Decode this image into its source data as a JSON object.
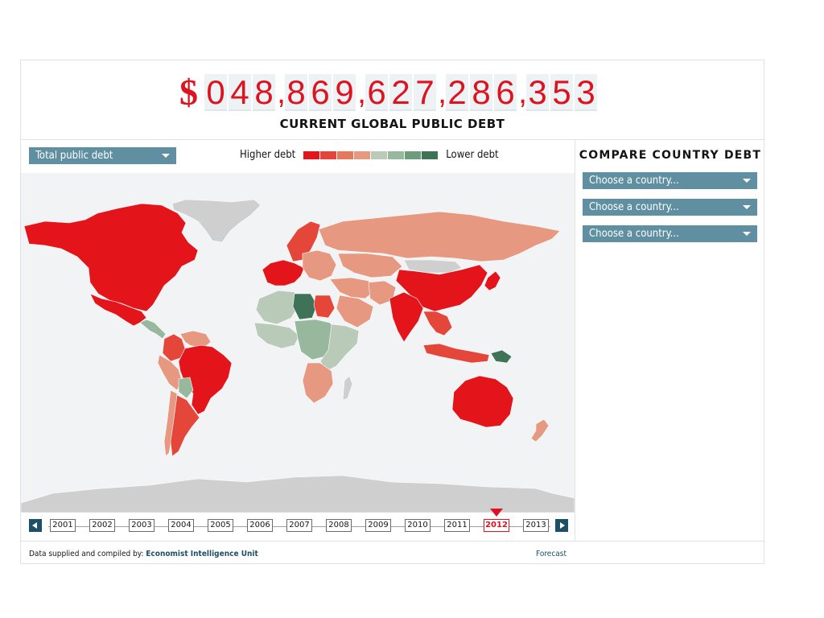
{
  "clock": {
    "currency_symbol": "$",
    "digit_groups": [
      "048",
      "869",
      "627",
      "286",
      "353"
    ],
    "label": "CURRENT GLOBAL PUBLIC DEBT"
  },
  "metric_select": {
    "value": "Total public debt"
  },
  "legend": {
    "higher_label": "Higher debt",
    "lower_label": "Lower debt",
    "colors": [
      "#e4141b",
      "#e5463a",
      "#e6785f",
      "#e69881",
      "#b9cbb8",
      "#98b89d",
      "#6f9b7d",
      "#3e7357"
    ]
  },
  "compare": {
    "title": "COMPARE COUNTRY DEBT",
    "placeholders": [
      "Choose a country...",
      "Choose a country...",
      "Choose a country..."
    ]
  },
  "timeline": {
    "years": [
      "2001",
      "2002",
      "2003",
      "2004",
      "2005",
      "2006",
      "2007",
      "2008",
      "2009",
      "2010",
      "2011",
      "2012",
      "2013"
    ],
    "selected": "2012"
  },
  "footer": {
    "prefix": "Data supplied and compiled by:",
    "source": "Economist Intelligence Unit",
    "forecast": "Forecast"
  },
  "map": {
    "ocean_color": "#f1f3f4",
    "no_data_color": "#cfcfcf",
    "regions": [
      {
        "name": "Canada & USA",
        "level": "highest"
      },
      {
        "name": "Mexico",
        "level": "highest"
      },
      {
        "name": "Greenland",
        "level": "no-data"
      },
      {
        "name": "Central America",
        "level": "lower"
      },
      {
        "name": "Colombia",
        "level": "high"
      },
      {
        "name": "Venezuela",
        "level": "mid-high"
      },
      {
        "name": "Peru",
        "level": "mid-high"
      },
      {
        "name": "Brazil",
        "level": "highest"
      },
      {
        "name": "Bolivia",
        "level": "lower"
      },
      {
        "name": "Chile",
        "level": "mid-high"
      },
      {
        "name": "Argentina",
        "level": "high"
      },
      {
        "name": "Western Europe",
        "level": "highest"
      },
      {
        "name": "Scandinavia",
        "level": "high"
      },
      {
        "name": "Eastern Europe",
        "level": "mid-high"
      },
      {
        "name": "Russia",
        "level": "mid-high"
      },
      {
        "name": "Kazakhstan",
        "level": "mid-high"
      },
      {
        "name": "Mongolia",
        "level": "no-data"
      },
      {
        "name": "China",
        "level": "highest"
      },
      {
        "name": "India",
        "level": "highest"
      },
      {
        "name": "Japan",
        "level": "highest"
      },
      {
        "name": "Middle East",
        "level": "mid-high"
      },
      {
        "name": "Saudi Arabia",
        "level": "mid-high"
      },
      {
        "name": "Iran",
        "level": "mid-high"
      },
      {
        "name": "Southeast Asia",
        "level": "high"
      },
      {
        "name": "Indonesia",
        "level": "high"
      },
      {
        "name": "Papua New Guinea",
        "level": "lowest"
      },
      {
        "name": "Australia",
        "level": "highest"
      },
      {
        "name": "New Zealand",
        "level": "mid-high"
      },
      {
        "name": "North Africa",
        "level": "low"
      },
      {
        "name": "Libya",
        "level": "lowest"
      },
      {
        "name": "Egypt",
        "level": "high"
      },
      {
        "name": "West Africa",
        "level": "low"
      },
      {
        "name": "Central Africa",
        "level": "lower"
      },
      {
        "name": "East Africa",
        "level": "low"
      },
      {
        "name": "Southern Africa",
        "level": "mid-high"
      },
      {
        "name": "Madagascar",
        "level": "no-data"
      },
      {
        "name": "Antarctica",
        "level": "no-data"
      }
    ]
  }
}
